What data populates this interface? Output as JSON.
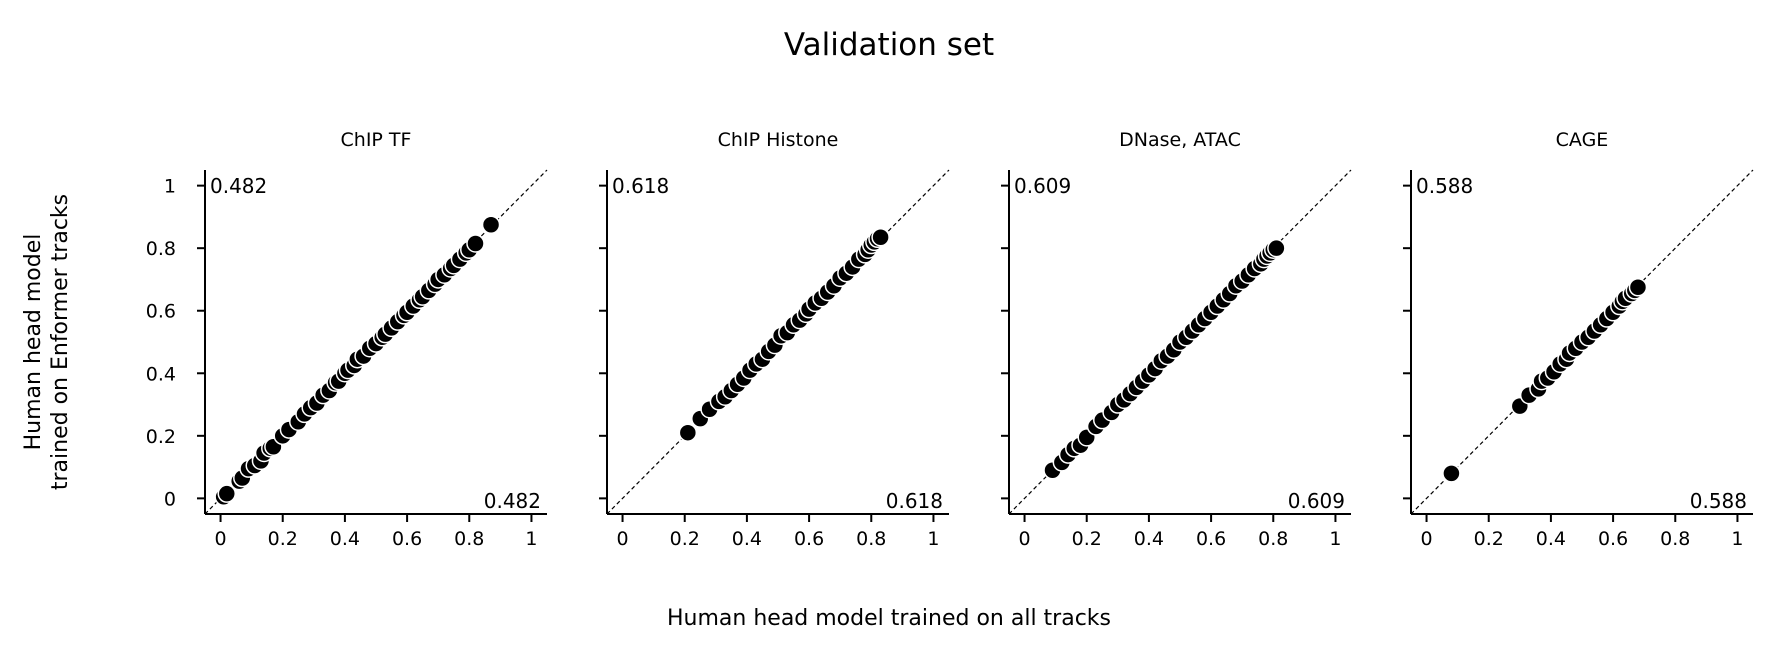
{
  "figure": {
    "title": "Validation set",
    "xlabel": "Human head model trained on all tracks",
    "ylabel_lines": [
      "Human head model",
      "trained on Enformer tracks"
    ]
  },
  "chart_data": [
    {
      "type": "scatter",
      "title": "ChIP TF",
      "xlim": [
        -0.05,
        1.05
      ],
      "ylim": [
        -0.05,
        1.05
      ],
      "xticks": [
        "0",
        "0.2",
        "0.4",
        "0.6",
        "0.8",
        "1"
      ],
      "yticks": [
        "0",
        "0.2",
        "0.4",
        "0.6",
        "0.8",
        "1"
      ],
      "reference_line": "y = x (dashed)",
      "y_mean_label": "0.482",
      "x_mean_label": "0.482",
      "points": [
        [
          0.01,
          0.005
        ],
        [
          0.02,
          0.015
        ],
        [
          0.06,
          0.055
        ],
        [
          0.07,
          0.065
        ],
        [
          0.09,
          0.095
        ],
        [
          0.11,
          0.105
        ],
        [
          0.13,
          0.12
        ],
        [
          0.14,
          0.145
        ],
        [
          0.16,
          0.16
        ],
        [
          0.17,
          0.165
        ],
        [
          0.2,
          0.2
        ],
        [
          0.22,
          0.22
        ],
        [
          0.25,
          0.245
        ],
        [
          0.27,
          0.27
        ],
        [
          0.29,
          0.29
        ],
        [
          0.31,
          0.305
        ],
        [
          0.33,
          0.33
        ],
        [
          0.35,
          0.345
        ],
        [
          0.37,
          0.37
        ],
        [
          0.38,
          0.375
        ],
        [
          0.4,
          0.4
        ],
        [
          0.41,
          0.41
        ],
        [
          0.43,
          0.425
        ],
        [
          0.44,
          0.445
        ],
        [
          0.46,
          0.455
        ],
        [
          0.48,
          0.48
        ],
        [
          0.5,
          0.495
        ],
        [
          0.52,
          0.515
        ],
        [
          0.53,
          0.525
        ],
        [
          0.55,
          0.545
        ],
        [
          0.57,
          0.565
        ],
        [
          0.59,
          0.585
        ],
        [
          0.6,
          0.595
        ],
        [
          0.62,
          0.615
        ],
        [
          0.64,
          0.635
        ],
        [
          0.65,
          0.645
        ],
        [
          0.67,
          0.665
        ],
        [
          0.69,
          0.685
        ],
        [
          0.7,
          0.7
        ],
        [
          0.72,
          0.715
        ],
        [
          0.74,
          0.735
        ],
        [
          0.75,
          0.745
        ],
        [
          0.77,
          0.765
        ],
        [
          0.79,
          0.785
        ],
        [
          0.8,
          0.795
        ],
        [
          0.82,
          0.815
        ],
        [
          0.87,
          0.875
        ]
      ]
    },
    {
      "type": "scatter",
      "title": "ChIP Histone",
      "xlim": [
        -0.05,
        1.05
      ],
      "ylim": [
        -0.05,
        1.05
      ],
      "xticks": [
        "0",
        "0.2",
        "0.4",
        "0.6",
        "0.8",
        "1"
      ],
      "yticks": [
        "0",
        "0.2",
        "0.4",
        "0.6",
        "0.8",
        "1"
      ],
      "reference_line": "y = x (dashed)",
      "y_mean_label": "0.618",
      "x_mean_label": "0.618",
      "points": [
        [
          0.21,
          0.21
        ],
        [
          0.25,
          0.255
        ],
        [
          0.28,
          0.285
        ],
        [
          0.31,
          0.31
        ],
        [
          0.33,
          0.325
        ],
        [
          0.35,
          0.345
        ],
        [
          0.37,
          0.365
        ],
        [
          0.39,
          0.385
        ],
        [
          0.41,
          0.41
        ],
        [
          0.43,
          0.43
        ],
        [
          0.45,
          0.445
        ],
        [
          0.47,
          0.47
        ],
        [
          0.49,
          0.49
        ],
        [
          0.51,
          0.52
        ],
        [
          0.53,
          0.53
        ],
        [
          0.55,
          0.555
        ],
        [
          0.57,
          0.57
        ],
        [
          0.59,
          0.59
        ],
        [
          0.6,
          0.605
        ],
        [
          0.62,
          0.625
        ],
        [
          0.64,
          0.64
        ],
        [
          0.66,
          0.66
        ],
        [
          0.68,
          0.68
        ],
        [
          0.7,
          0.705
        ],
        [
          0.72,
          0.72
        ],
        [
          0.74,
          0.74
        ],
        [
          0.76,
          0.765
        ],
        [
          0.78,
          0.78
        ],
        [
          0.79,
          0.795
        ],
        [
          0.8,
          0.81
        ],
        [
          0.81,
          0.82
        ],
        [
          0.82,
          0.83
        ],
        [
          0.83,
          0.835
        ]
      ]
    },
    {
      "type": "scatter",
      "title": "DNase, ATAC",
      "xlim": [
        -0.05,
        1.05
      ],
      "ylim": [
        -0.05,
        1.05
      ],
      "xticks": [
        "0",
        "0.2",
        "0.4",
        "0.6",
        "0.8",
        "1"
      ],
      "yticks": [
        "0",
        "0.2",
        "0.4",
        "0.6",
        "0.8",
        "1"
      ],
      "reference_line": "y = x (dashed)",
      "y_mean_label": "0.609",
      "x_mean_label": "0.609",
      "points": [
        [
          0.09,
          0.09
        ],
        [
          0.12,
          0.115
        ],
        [
          0.14,
          0.14
        ],
        [
          0.16,
          0.16
        ],
        [
          0.18,
          0.17
        ],
        [
          0.2,
          0.195
        ],
        [
          0.23,
          0.23
        ],
        [
          0.25,
          0.25
        ],
        [
          0.28,
          0.275
        ],
        [
          0.3,
          0.3
        ],
        [
          0.32,
          0.315
        ],
        [
          0.34,
          0.335
        ],
        [
          0.36,
          0.355
        ],
        [
          0.38,
          0.375
        ],
        [
          0.4,
          0.395
        ],
        [
          0.42,
          0.415
        ],
        [
          0.44,
          0.44
        ],
        [
          0.46,
          0.455
        ],
        [
          0.48,
          0.475
        ],
        [
          0.5,
          0.5
        ],
        [
          0.52,
          0.515
        ],
        [
          0.54,
          0.535
        ],
        [
          0.56,
          0.555
        ],
        [
          0.58,
          0.575
        ],
        [
          0.6,
          0.595
        ],
        [
          0.62,
          0.615
        ],
        [
          0.64,
          0.635
        ],
        [
          0.66,
          0.655
        ],
        [
          0.68,
          0.68
        ],
        [
          0.7,
          0.695
        ],
        [
          0.72,
          0.715
        ],
        [
          0.74,
          0.735
        ],
        [
          0.76,
          0.75
        ],
        [
          0.77,
          0.765
        ],
        [
          0.78,
          0.775
        ],
        [
          0.79,
          0.785
        ],
        [
          0.8,
          0.795
        ],
        [
          0.81,
          0.8
        ]
      ]
    },
    {
      "type": "scatter",
      "title": "CAGE",
      "xlim": [
        -0.05,
        1.05
      ],
      "ylim": [
        -0.05,
        1.05
      ],
      "xticks": [
        "0",
        "0.2",
        "0.4",
        "0.6",
        "0.8",
        "1"
      ],
      "yticks": [
        "0",
        "0.2",
        "0.4",
        "0.6",
        "0.8",
        "1"
      ],
      "reference_line": "y = x (dashed)",
      "y_mean_label": "0.588",
      "x_mean_label": "0.588",
      "points": [
        [
          0.08,
          0.08
        ],
        [
          0.3,
          0.295
        ],
        [
          0.33,
          0.33
        ],
        [
          0.36,
          0.35
        ],
        [
          0.37,
          0.375
        ],
        [
          0.39,
          0.385
        ],
        [
          0.41,
          0.405
        ],
        [
          0.43,
          0.43
        ],
        [
          0.45,
          0.445
        ],
        [
          0.46,
          0.465
        ],
        [
          0.48,
          0.48
        ],
        [
          0.5,
          0.5
        ],
        [
          0.52,
          0.515
        ],
        [
          0.54,
          0.535
        ],
        [
          0.56,
          0.555
        ],
        [
          0.58,
          0.575
        ],
        [
          0.6,
          0.595
        ],
        [
          0.62,
          0.615
        ],
        [
          0.63,
          0.63
        ],
        [
          0.64,
          0.64
        ],
        [
          0.66,
          0.655
        ],
        [
          0.67,
          0.665
        ],
        [
          0.68,
          0.675
        ]
      ]
    }
  ]
}
